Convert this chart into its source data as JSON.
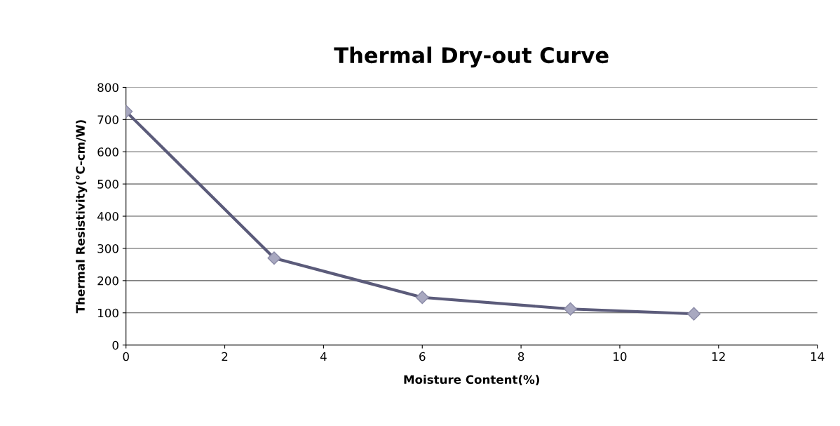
{
  "chart_data": {
    "type": "line",
    "title": "Thermal Dry-out Curve",
    "xlabel": "Moisture Content(%)",
    "ylabel": "Thermal Resistivity(°C-cm/W)",
    "x": [
      0,
      3,
      6,
      9,
      11.5
    ],
    "series": [
      {
        "color": "#5b5b7a",
        "values": [
          725,
          270,
          148,
          112,
          97
        ]
      }
    ],
    "xlim": [
      0,
      14
    ],
    "xticks": [
      0,
      2,
      4,
      6,
      8,
      10,
      12,
      14
    ],
    "ylim": [
      0,
      800
    ],
    "yticks": [
      0,
      100,
      200,
      300,
      400,
      500,
      600,
      700,
      800
    ],
    "grid": "y",
    "legend": false,
    "marker": "diamond",
    "line_style": "solid"
  }
}
